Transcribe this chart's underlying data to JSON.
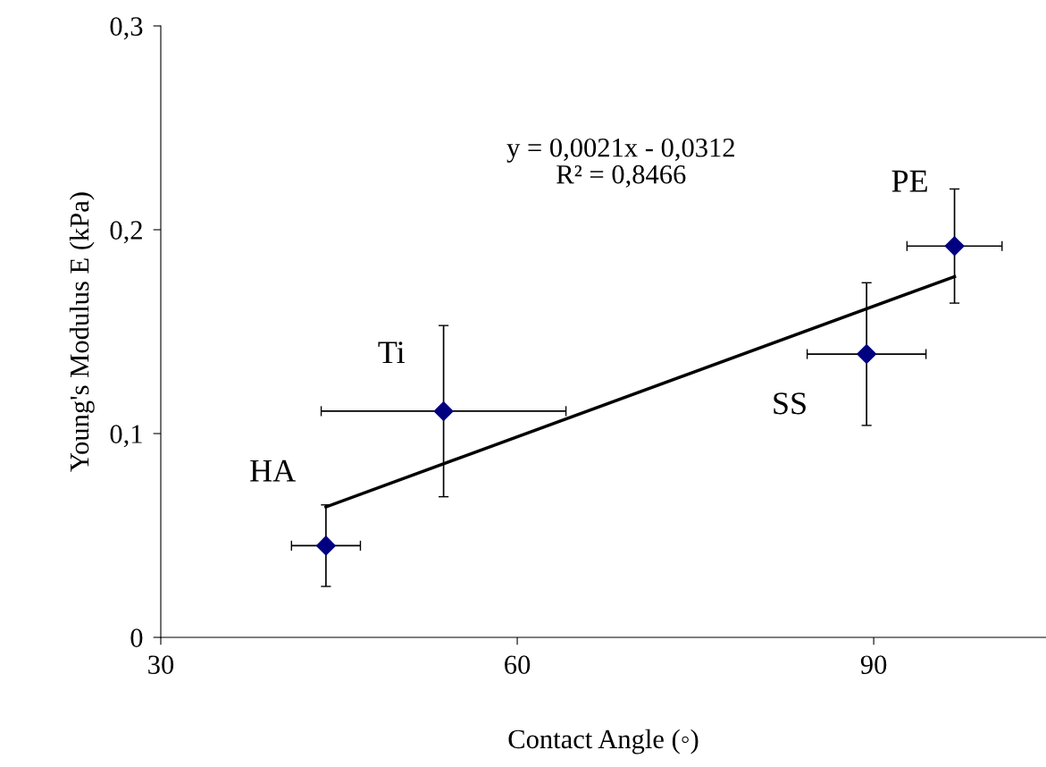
{
  "chart_data": {
    "type": "scatter",
    "xlabel": "Contact Angle (◦)",
    "ylabel": "Young's Modulus E (kPa)",
    "series": [
      {
        "color": "#000080",
        "marker": "diamond",
        "x": [
          43.9,
          53.8,
          89.4,
          96.8
        ],
        "values": [
          0.045,
          0.111,
          0.139,
          0.192
        ],
        "errors": [
          0.02,
          0.042,
          0.035,
          0.028
        ],
        "xerrors": [
          2.9,
          10.3,
          5.0,
          4.0
        ]
      },
      {
        "type": "line",
        "color": "#000000",
        "line_style": "solid",
        "x": [
          43.9,
          96.8
        ],
        "values": [
          0.064,
          0.177
        ]
      }
    ],
    "annotations": [
      "y = 0,0021x - 0,0312\nR² = 0,8466",
      {
        "text": "HA",
        "x": 43.9,
        "y": 0.045
      },
      {
        "text": "Ti",
        "x": 53.8,
        "y": 0.111
      },
      {
        "text": "SS",
        "x": 89.4,
        "y": 0.139
      },
      {
        "text": "PE",
        "x": 96.8,
        "y": 0.192
      }
    ],
    "xlim": [
      30,
      104.5
    ],
    "xticks": [
      30,
      60,
      90
    ],
    "ylim": [
      0,
      0.3
    ],
    "yticks": [
      {
        "value": 0,
        "label": "0"
      },
      {
        "value": 0.1,
        "label": "0,1"
      },
      {
        "value": 0.2,
        "label": "0,2"
      },
      {
        "value": 0.3,
        "label": "0,3"
      }
    ],
    "grid": false,
    "legend": false
  }
}
